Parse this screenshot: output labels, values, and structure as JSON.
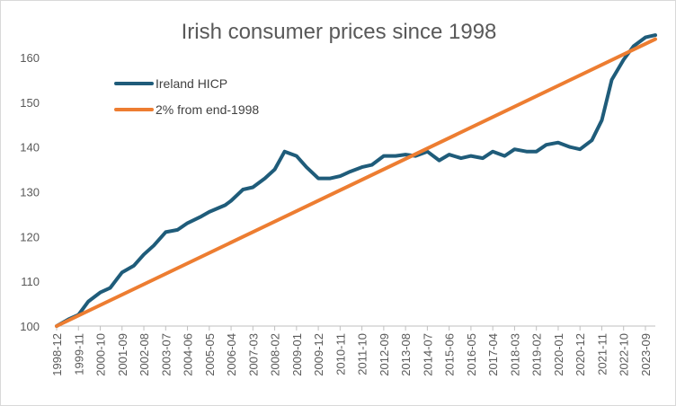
{
  "chart_data": {
    "type": "line",
    "title": "Irish consumer prices since 1998",
    "xlabel": "",
    "ylabel": "",
    "ylim": [
      100,
      165
    ],
    "yticks": [
      100,
      110,
      120,
      130,
      140,
      150,
      160
    ],
    "grid": false,
    "legend_position": "top-left",
    "x_ticks": [
      "1998-12",
      "1999-11",
      "2000-10",
      "2001-09",
      "2002-08",
      "2003-07",
      "2004-06",
      "2005-05",
      "2006-04",
      "2007-03",
      "2008-02",
      "2009-01",
      "2009-12",
      "2010-11",
      "2011-10",
      "2012-09",
      "2013-08",
      "2014-07",
      "2015-06",
      "2016-05",
      "2017-04",
      "2018-03",
      "2019-02",
      "2020-01",
      "2020-12",
      "2021-11",
      "2022-10",
      "2023-09"
    ],
    "series": [
      {
        "name": "Ireland HICP",
        "color": "#1f5c7a",
        "points": [
          [
            "1998-12",
            100.0
          ],
          [
            "1999-06",
            101.5
          ],
          [
            "1999-11",
            102.5
          ],
          [
            "2000-04",
            105.5
          ],
          [
            "2000-10",
            107.5
          ],
          [
            "2001-03",
            108.5
          ],
          [
            "2001-09",
            112.0
          ],
          [
            "2002-03",
            113.5
          ],
          [
            "2002-08",
            116.0
          ],
          [
            "2003-01",
            118.0
          ],
          [
            "2003-07",
            121.0
          ],
          [
            "2004-01",
            121.5
          ],
          [
            "2004-06",
            123.0
          ],
          [
            "2005-01",
            124.5
          ],
          [
            "2005-05",
            125.5
          ],
          [
            "2006-01",
            127.0
          ],
          [
            "2006-04",
            128.0
          ],
          [
            "2006-10",
            130.5
          ],
          [
            "2007-03",
            131.0
          ],
          [
            "2007-09",
            133.0
          ],
          [
            "2008-02",
            135.0
          ],
          [
            "2008-07",
            139.0
          ],
          [
            "2009-01",
            138.0
          ],
          [
            "2009-06",
            135.5
          ],
          [
            "2009-12",
            133.0
          ],
          [
            "2010-06",
            133.0
          ],
          [
            "2010-11",
            133.5
          ],
          [
            "2011-04",
            134.5
          ],
          [
            "2011-10",
            135.5
          ],
          [
            "2012-03",
            136.0
          ],
          [
            "2012-09",
            138.0
          ],
          [
            "2013-03",
            138.0
          ],
          [
            "2013-08",
            138.3
          ],
          [
            "2014-01",
            138.0
          ],
          [
            "2014-07",
            139.0
          ],
          [
            "2015-01",
            137.0
          ],
          [
            "2015-06",
            138.3
          ],
          [
            "2015-12",
            137.5
          ],
          [
            "2016-05",
            138.0
          ],
          [
            "2016-11",
            137.5
          ],
          [
            "2017-04",
            139.0
          ],
          [
            "2017-10",
            138.0
          ],
          [
            "2018-03",
            139.5
          ],
          [
            "2018-09",
            139.0
          ],
          [
            "2019-02",
            139.0
          ],
          [
            "2019-07",
            140.5
          ],
          [
            "2020-01",
            141.0
          ],
          [
            "2020-07",
            140.0
          ],
          [
            "2020-12",
            139.5
          ],
          [
            "2021-06",
            141.5
          ],
          [
            "2021-11",
            146.0
          ],
          [
            "2022-04",
            155.0
          ],
          [
            "2022-10",
            159.5
          ],
          [
            "2023-03",
            162.5
          ],
          [
            "2023-09",
            164.5
          ],
          [
            "2024-02",
            165.0
          ]
        ]
      },
      {
        "name": "2% from end-1998",
        "color": "#ed7d31",
        "points": [
          [
            "1998-12",
            100.0
          ],
          [
            "2024-02",
            164.1
          ]
        ]
      }
    ]
  }
}
